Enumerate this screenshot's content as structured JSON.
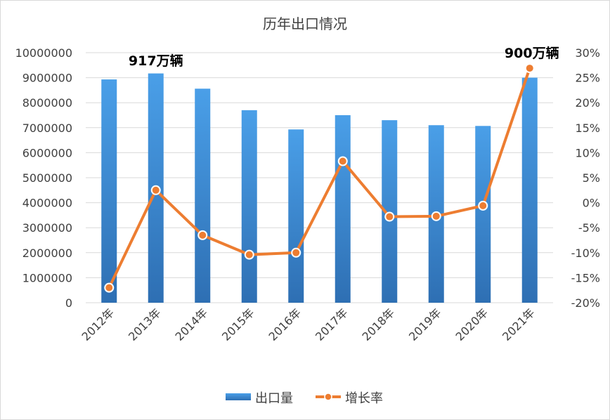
{
  "chart_data": {
    "type": "bar",
    "title": "历年出口情况",
    "categories": [
      "2012年",
      "2013年",
      "2014年",
      "2015年",
      "2016年",
      "2017年",
      "2018年",
      "2019年",
      "2020年",
      "2021年"
    ],
    "series": [
      {
        "name": "出口量",
        "type": "bar",
        "axis": "left",
        "values": [
          8930000,
          9170000,
          8560000,
          7700000,
          6930000,
          7500000,
          7300000,
          7100000,
          7070000,
          9000000
        ],
        "color": "#4a9fe8"
      },
      {
        "name": "增长率",
        "type": "line",
        "axis": "right",
        "values": [
          -17.0,
          2.5,
          -6.5,
          -10.4,
          -10.0,
          8.3,
          -2.8,
          -2.7,
          -0.6,
          26.9
        ],
        "color": "#ed7d31"
      }
    ],
    "y_left": {
      "min": 0,
      "max": 10000000,
      "step": 1000000,
      "ticks": [
        "0",
        "1000000",
        "2000000",
        "3000000",
        "4000000",
        "5000000",
        "6000000",
        "7000000",
        "8000000",
        "9000000",
        "10000000"
      ]
    },
    "y_right": {
      "min": -20,
      "max": 30,
      "step": 5,
      "ticks": [
        "-20%",
        "-15%",
        "-10%",
        "-5%",
        "0%",
        "5%",
        "10%",
        "15%",
        "20%",
        "25%",
        "30%"
      ]
    },
    "annotations": [
      {
        "text": "917万辆",
        "category": "2013年"
      },
      {
        "text": "900万辆",
        "category": "2021年"
      }
    ],
    "legend": {
      "position": "bottom",
      "items": [
        "出口量",
        "增长率"
      ]
    },
    "grid": true
  }
}
